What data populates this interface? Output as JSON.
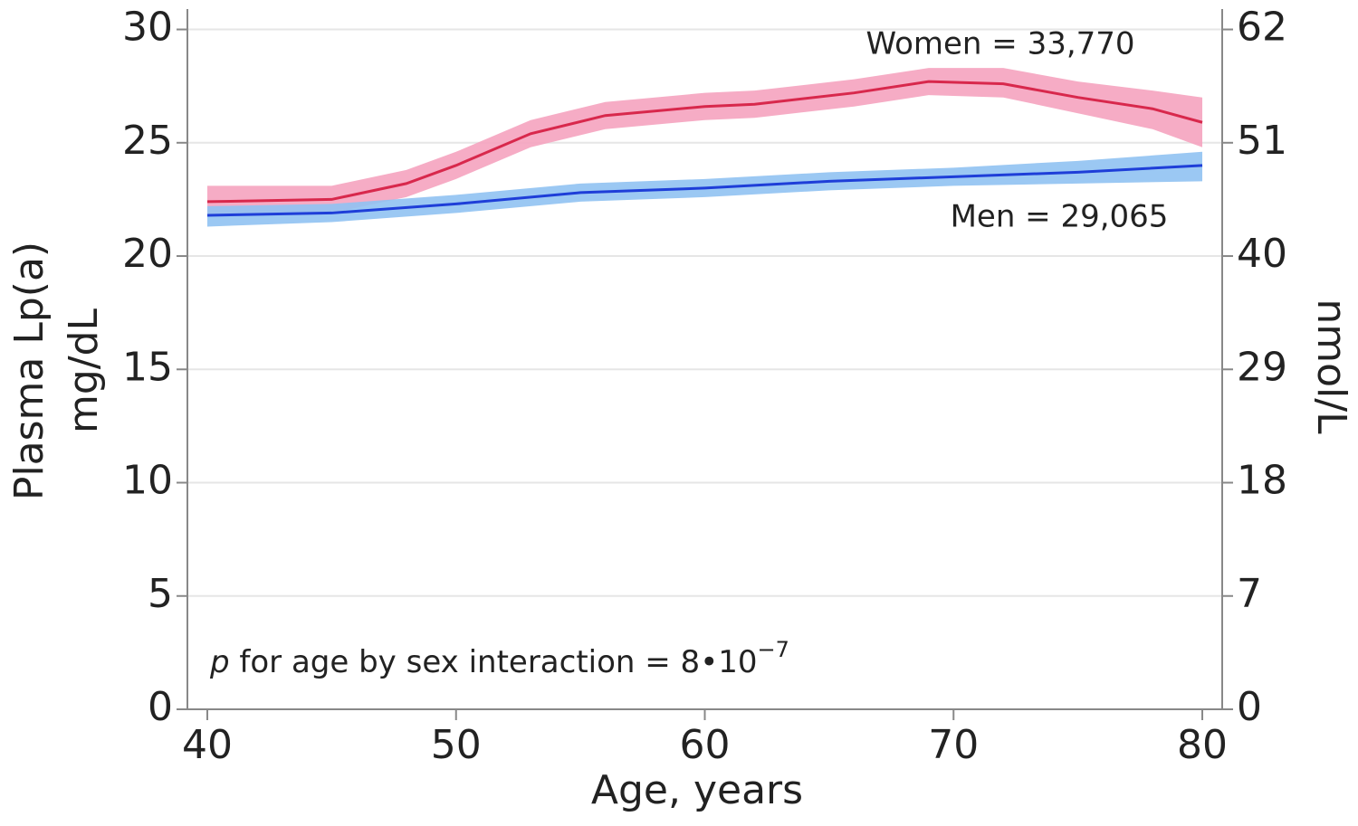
{
  "chart_data": {
    "type": "line",
    "xlabel": "Age, years",
    "ylabel": [
      "Plasma Lp(a)",
      "mg/dL"
    ],
    "y2label": "nmol/L",
    "xlim": [
      39.2,
      80.8
    ],
    "xticks": [
      40,
      50,
      60,
      70,
      80
    ],
    "ylim": [
      0,
      30.9
    ],
    "yticks": [
      0,
      5,
      10,
      15,
      20,
      25,
      30
    ],
    "y2lim": [
      0,
      30.9
    ],
    "y2ticks": [
      0,
      {
        "value": 5,
        "label": "7"
      },
      {
        "value": 10,
        "label": "18"
      },
      {
        "value": 15,
        "label": "29"
      },
      {
        "value": 20,
        "label": "40"
      },
      {
        "value": 25,
        "label": "51"
      },
      {
        "value": 30,
        "label": "62"
      }
    ],
    "grid": true,
    "series": [
      {
        "name": "Women = 33,770",
        "color": "#d8284c",
        "band_color": "#f5a3bf",
        "x": [
          40,
          45,
          48,
          50,
          53,
          56,
          60,
          62,
          66,
          69,
          72,
          75,
          78,
          80
        ],
        "values": [
          22.4,
          22.5,
          23.2,
          24.0,
          25.4,
          26.2,
          26.6,
          26.7,
          27.2,
          27.7,
          27.6,
          27.0,
          26.5,
          25.9
        ],
        "lower": [
          21.8,
          21.9,
          22.6,
          23.4,
          24.8,
          25.6,
          26.0,
          26.1,
          26.6,
          27.1,
          27.0,
          26.3,
          25.6,
          24.8
        ],
        "upper": [
          23.1,
          23.1,
          23.8,
          24.6,
          26.0,
          26.8,
          27.2,
          27.3,
          27.8,
          28.3,
          28.3,
          27.7,
          27.3,
          27.0
        ]
      },
      {
        "name": "Men = 29,065",
        "color": "#1e3ed8",
        "band_color": "#90c2f2",
        "x": [
          40,
          45,
          50,
          55,
          60,
          65,
          70,
          75,
          80
        ],
        "values": [
          21.8,
          21.9,
          22.3,
          22.8,
          23.0,
          23.3,
          23.5,
          23.7,
          24.0
        ],
        "lower": [
          21.3,
          21.5,
          21.9,
          22.4,
          22.6,
          22.9,
          23.1,
          23.2,
          23.3
        ],
        "upper": [
          22.2,
          22.3,
          22.7,
          23.2,
          23.4,
          23.7,
          23.9,
          24.2,
          24.6
        ]
      }
    ],
    "annotation": {
      "italic": "p",
      "text": " for age by sex interaction = 8•10",
      "superscript": "−7"
    }
  }
}
